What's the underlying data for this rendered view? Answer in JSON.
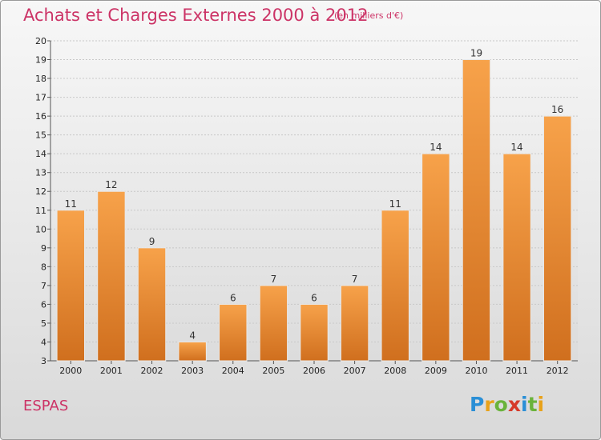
{
  "header": {
    "title": "Achats et Charges Externes 2000 à 2012",
    "unit": "(en milliers d'€)"
  },
  "footer": {
    "commune": "ESPAS",
    "logo": {
      "text": "Proxiti",
      "letters": [
        {
          "ch": "P",
          "color": "#2a8fd6"
        },
        {
          "ch": "r",
          "color": "#e8a21a"
        },
        {
          "ch": "o",
          "color": "#6ab33c"
        },
        {
          "ch": "x",
          "color": "#d63a2a"
        },
        {
          "ch": "i",
          "color": "#2a8fd6"
        },
        {
          "ch": "t",
          "color": "#6ab33c"
        },
        {
          "ch": "i",
          "color": "#e8a21a"
        }
      ]
    }
  },
  "colors": {
    "title": "#cc3366",
    "bar_top": "#f7a24a",
    "bar_bottom": "#d06f1e",
    "grid": "#c8c8c8"
  },
  "chart_data": {
    "type": "bar",
    "title": "Achats et Charges Externes 2000 à 2012",
    "xlabel": "",
    "ylabel": "",
    "ylim": [
      3,
      20
    ],
    "yticks": [
      3,
      4,
      5,
      6,
      7,
      8,
      9,
      10,
      11,
      12,
      13,
      14,
      15,
      16,
      17,
      18,
      19,
      20
    ],
    "grid": true,
    "categories": [
      "2000",
      "2001",
      "2002",
      "2003",
      "2004",
      "2005",
      "2006",
      "2007",
      "2008",
      "2009",
      "2010",
      "2011",
      "2012"
    ],
    "values": [
      11,
      12,
      9,
      4,
      6,
      7,
      6,
      7,
      11,
      14,
      19,
      14,
      16
    ]
  }
}
